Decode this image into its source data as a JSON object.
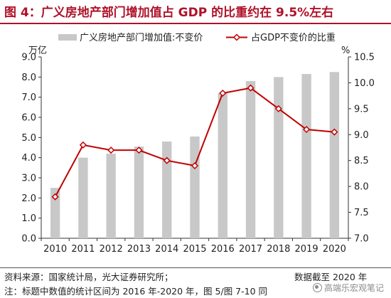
{
  "title": "图 4：广义房地产部门增加值占 GDP 的比重约在 9.5%左右",
  "footer": {
    "source": "资料来源：国家统计局，光大证券研究所；",
    "date_note": "数据截至 2020 年",
    "note": "注：标题中数值的统计区间为 2016 年-2020 年，图 5/图 7-10 同"
  },
  "watermark": "高端乐宏观笔记",
  "colors": {
    "bar": "#c8c8c8",
    "line": "#c00000",
    "title": "#b0122a"
  },
  "chart_data": {
    "type": "bar",
    "categories": [
      "2010",
      "2011",
      "2012",
      "2013",
      "2014",
      "2015",
      "2016",
      "2017",
      "2018",
      "2019",
      "2020"
    ],
    "series": [
      {
        "name": "广义房地产部门增加值:不变价",
        "type": "bar",
        "axis": "left",
        "values": [
          2.5,
          4.0,
          4.2,
          4.55,
          4.8,
          5.05,
          7.2,
          7.8,
          8.0,
          8.15,
          8.25
        ]
      },
      {
        "name": "占GDP不变价的比重",
        "type": "line",
        "axis": "right",
        "values": [
          7.8,
          8.8,
          8.7,
          8.7,
          8.5,
          8.4,
          9.8,
          9.9,
          9.5,
          9.1,
          9.05
        ]
      }
    ],
    "y_left": {
      "unit": "万亿",
      "min": 0,
      "max": 9,
      "ticks": [
        0.0,
        1.0,
        2.0,
        3.0,
        4.0,
        5.0,
        6.0,
        7.0,
        8.0,
        9.0
      ]
    },
    "y_right": {
      "unit": "%",
      "min": 7.0,
      "max": 10.5,
      "ticks": [
        7.0,
        7.5,
        8.0,
        8.5,
        9.0,
        9.5,
        10.0,
        10.5
      ]
    },
    "legend_position": "top",
    "grid": false
  }
}
